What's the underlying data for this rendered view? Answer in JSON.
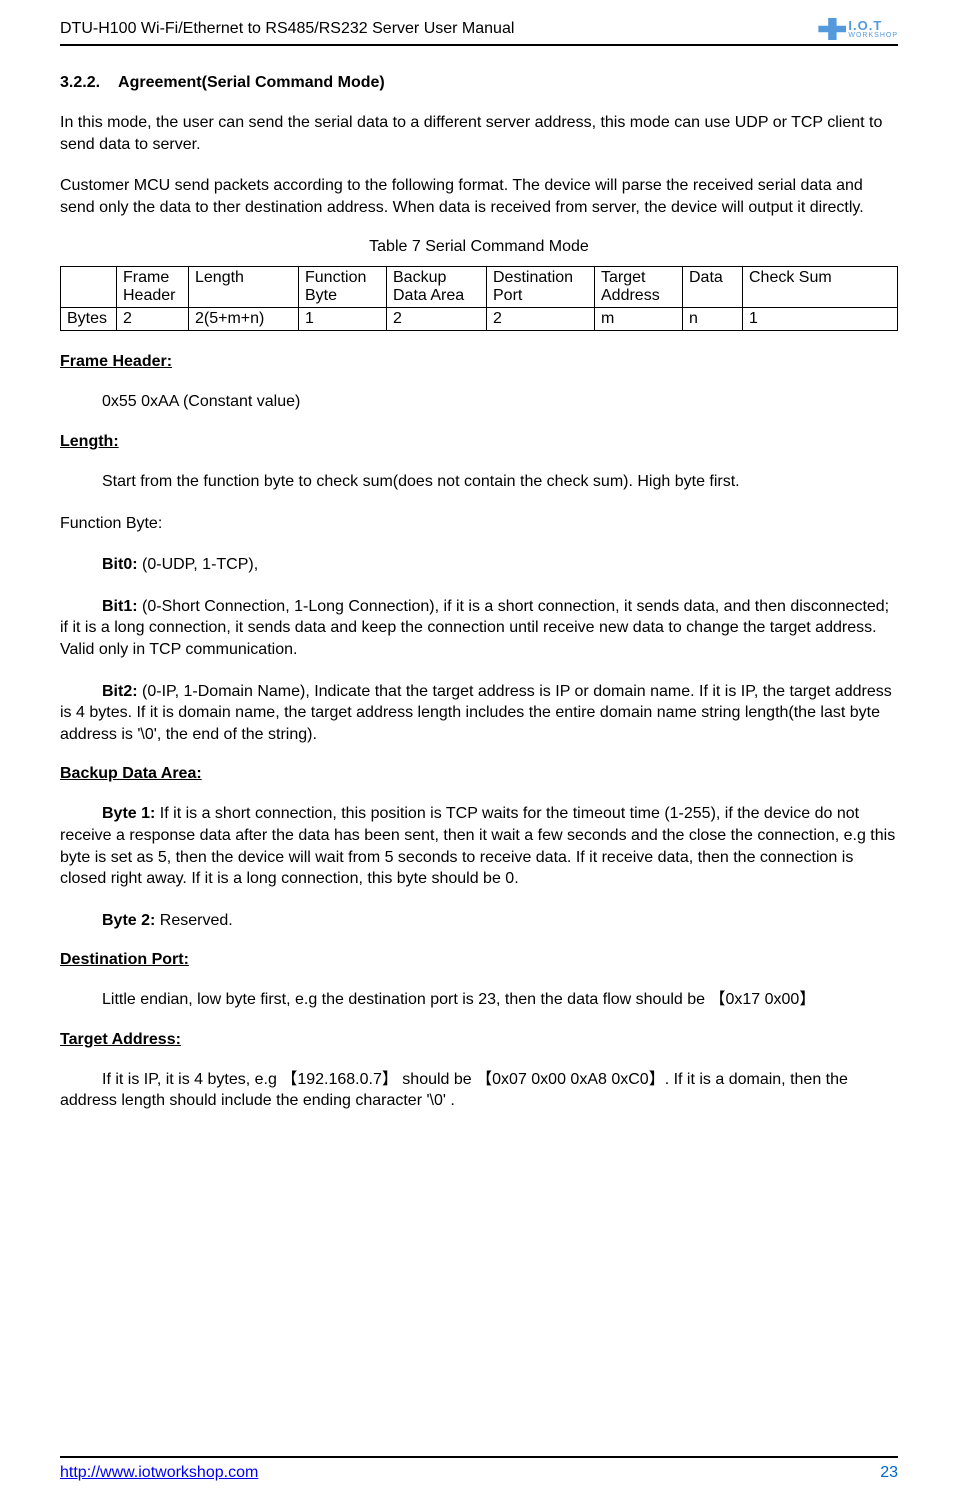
{
  "header": {
    "title": "DTU-H100  Wi-Fi/Ethernet to RS485/RS232  Server User Manual",
    "logo_iot": "I.O.T",
    "logo_workshop": "WORKSHOP"
  },
  "section": {
    "number": "3.2.2.",
    "title": "Agreement(Serial Command Mode)"
  },
  "para1": "In this mode, the user can send the serial data to a different server address, this mode can use UDP or TCP client to send data to server.",
  "para2": "Customer MCU send packets according to the following format. The device will parse the received serial data and send only the data to ther destination address. When data is received from server, the device will output it directly.",
  "table_caption": "Table 7    Serial Command Mode",
  "table": {
    "headers": [
      "",
      "Frame Header",
      "Length",
      "Function Byte",
      "Backup Data Area",
      "Destination Port",
      "Target Address",
      "Data",
      "Check Sum"
    ],
    "row_label": "Bytes",
    "row": [
      "2",
      "2(5+m+n)",
      "1",
      "2",
      "2",
      "m",
      "n",
      "1"
    ]
  },
  "frame_header": {
    "title": "Frame Header:",
    "body": "0x55 0xAA (Constant value)"
  },
  "length": {
    "title": "Length:",
    "body": "Start from the function byte to check sum(does not contain the check sum). High byte first."
  },
  "function_byte": {
    "title": "Function Byte:",
    "bit0_label": "Bit0:",
    "bit0_body": " (0-UDP, 1-TCP),",
    "bit1_label": "Bit1:",
    "bit1_body": " (0-Short Connection, 1-Long Connection), if it is a short connection, it sends data, and then disconnected; if it is a long connection, it sends data and keep the connection until receive new data to change the target address. Valid only in TCP communication.",
    "bit2_label": "Bit2:",
    "bit2_body": " (0-IP, 1-Domain Name), Indicate that the target address is IP or domain name. If it is IP, the target address is 4 bytes. If it is domain name, the target address length includes the entire domain name string length(the last byte address is '\\0', the end of the string)."
  },
  "backup": {
    "title": "Backup Data Area:",
    "byte1_label": "Byte 1:",
    "byte1_body": " If it is a short connection, this position is TCP waits for the timeout time (1-255), if the device do not receive a response data after the data has been sent,  then it wait a few seconds and the close the connection, e.g this byte is set as 5, then the device will wait from 5 seconds to receive data. If it receive data, then the connection is closed right away. If it is a long connection, this byte should be 0.",
    "byte2_label": "Byte 2:",
    "byte2_body": " Reserved."
  },
  "dest_port": {
    "title": "Destination Port:",
    "body": "Little endian, low byte first, e.g the destination port is 23, then the data flow should be 【0x17 0x00】"
  },
  "target_addr": {
    "title": "Target Address:",
    "body": "If it is IP, it is 4 bytes, e.g 【192.168.0.7】 should be 【0x07 0x00 0xA8 0xC0】. If it is a domain, then the address length should include the ending character '\\0' ."
  },
  "footer": {
    "url": "http://www.iotworkshop.com",
    "page": "23"
  }
}
